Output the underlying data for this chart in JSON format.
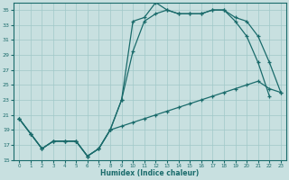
{
  "xlabel": "Humidex (Indice chaleur)",
  "xlim": [
    -0.5,
    23.5
  ],
  "ylim": [
    15,
    36
  ],
  "yticks": [
    15,
    17,
    19,
    21,
    23,
    25,
    27,
    29,
    31,
    33,
    35
  ],
  "xticks": [
    0,
    1,
    2,
    3,
    4,
    5,
    6,
    7,
    8,
    9,
    10,
    11,
    12,
    13,
    14,
    15,
    16,
    17,
    18,
    19,
    20,
    21,
    22,
    23
  ],
  "bg_color": "#c8e0e0",
  "line_color": "#1a6b6b",
  "grid_color": "#a0c8c8",
  "curve1_x": [
    0,
    1,
    2,
    3,
    4,
    5,
    6,
    7,
    8,
    9,
    10,
    11,
    12,
    13,
    14,
    15,
    16,
    17,
    18,
    19,
    20,
    21,
    22
  ],
  "curve1_y": [
    20.5,
    18.5,
    16.5,
    17.5,
    17.5,
    17.5,
    15.5,
    16.5,
    19.0,
    23.0,
    33.5,
    34.0,
    36.0,
    35.0,
    34.5,
    34.5,
    34.5,
    35.0,
    35.0,
    33.5,
    31.5,
    28.0,
    23.5
  ],
  "curve2_x": [
    0,
    1,
    2,
    3,
    4,
    5,
    6,
    7,
    8,
    9,
    10,
    11,
    12,
    13,
    14,
    15,
    16,
    17,
    18,
    19,
    20,
    21,
    22,
    23
  ],
  "curve2_y": [
    20.5,
    18.5,
    16.5,
    17.5,
    17.5,
    17.5,
    15.5,
    16.5,
    19.0,
    23.0,
    29.5,
    33.5,
    34.5,
    35.0,
    34.5,
    34.5,
    34.5,
    35.0,
    35.0,
    34.0,
    33.5,
    31.5,
    28.0,
    24.0
  ],
  "curve3_x": [
    0,
    1,
    2,
    3,
    4,
    5,
    6,
    7,
    8,
    9,
    10,
    11,
    12,
    13,
    14,
    15,
    16,
    17,
    18,
    19,
    20,
    21,
    22,
    23
  ],
  "curve3_y": [
    20.5,
    18.5,
    16.5,
    17.5,
    17.5,
    17.5,
    15.5,
    16.5,
    19.0,
    19.5,
    20.0,
    20.5,
    21.0,
    21.5,
    22.0,
    22.5,
    23.0,
    23.5,
    24.0,
    24.5,
    25.0,
    25.5,
    24.5,
    24.0
  ]
}
